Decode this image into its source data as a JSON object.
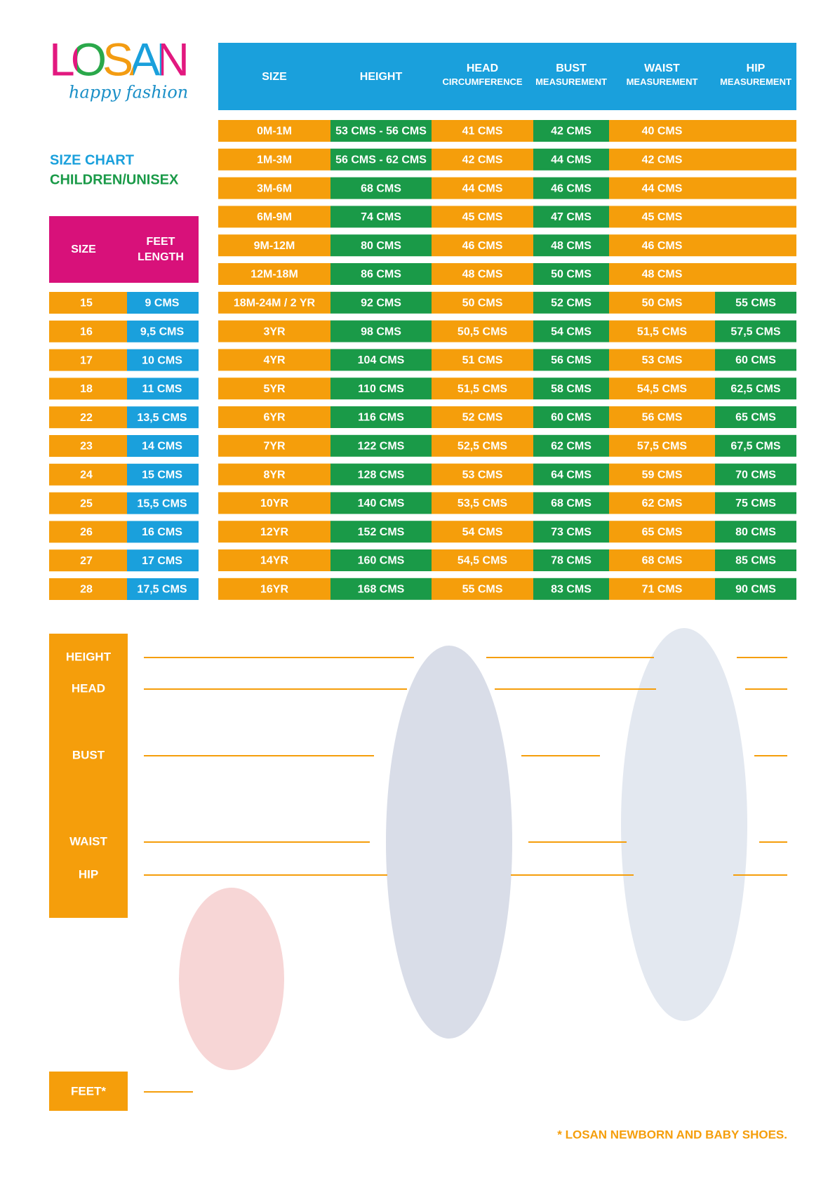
{
  "logo": {
    "brand": "LOSAN",
    "tagline": "happy fashion"
  },
  "title": {
    "line1": "SIZE CHART",
    "line2": "CHILDREN/UNISEX"
  },
  "feet_table": {
    "header": [
      "SIZE",
      "FEET LENGTH"
    ],
    "rows": [
      [
        "15",
        "9 CMS"
      ],
      [
        "16",
        "9,5 CMS"
      ],
      [
        "17",
        "10 CMS"
      ],
      [
        "18",
        "11 CMS"
      ],
      [
        "22",
        "13,5 CMS"
      ],
      [
        "23",
        "14 CMS"
      ],
      [
        "24",
        "15 CMS"
      ],
      [
        "25",
        "15,5 CMS"
      ],
      [
        "26",
        "16 CMS"
      ],
      [
        "27",
        "17 CMS"
      ],
      [
        "28",
        "17,5 CMS"
      ]
    ]
  },
  "size_table": {
    "header": [
      "SIZE",
      "HEIGHT",
      "HEAD CIRCUMFERENCE",
      "BUST MEASUREMENT",
      "WAIST MEASUREMENT",
      "HIP MEASUREMENT"
    ],
    "rows": [
      [
        "0M-1M",
        "53 CMS - 56 CMS",
        "41 CMS",
        "42 CMS",
        "40 CMS",
        null
      ],
      [
        "1M-3M",
        "56 CMS - 62 CMS",
        "42 CMS",
        "44 CMS",
        "42 CMS",
        null
      ],
      [
        "3M-6M",
        "68 CMS",
        "44 CMS",
        "46 CMS",
        "44 CMS",
        null
      ],
      [
        "6M-9M",
        "74 CMS",
        "45 CMS",
        "47 CMS",
        "45 CMS",
        null
      ],
      [
        "9M-12M",
        "80 CMS",
        "46 CMS",
        "48 CMS",
        "46 CMS",
        null
      ],
      [
        "12M-18M",
        "86 CMS",
        "48 CMS",
        "50 CMS",
        "48 CMS",
        null
      ],
      [
        "18M-24M / 2 YR",
        "92 CMS",
        "50 CMS",
        "52 CMS",
        "50 CMS",
        "55 CMS"
      ],
      [
        "3YR",
        "98 CMS",
        "50,5 CMS",
        "54 CMS",
        "51,5 CMS",
        "57,5 CMS"
      ],
      [
        "4YR",
        "104 CMS",
        "51 CMS",
        "56 CMS",
        "53 CMS",
        "60 CMS"
      ],
      [
        "5YR",
        "110 CMS",
        "51,5 CMS",
        "58 CMS",
        "54,5 CMS",
        "62,5 CMS"
      ],
      [
        "6YR",
        "116 CMS",
        "52 CMS",
        "60 CMS",
        "56 CMS",
        "65 CMS"
      ],
      [
        "7YR",
        "122 CMS",
        "52,5 CMS",
        "62 CMS",
        "57,5 CMS",
        "67,5 CMS"
      ],
      [
        "8YR",
        "128 CMS",
        "53 CMS",
        "64 CMS",
        "59 CMS",
        "70 CMS"
      ],
      [
        "10YR",
        "140 CMS",
        "53,5 CMS",
        "68 CMS",
        "62 CMS",
        "75 CMS"
      ],
      [
        "12YR",
        "152 CMS",
        "54 CMS",
        "73 CMS",
        "65 CMS",
        "80 CMS"
      ],
      [
        "14YR",
        "160 CMS",
        "54,5 CMS",
        "78 CMS",
        "68 CMS",
        "85 CMS"
      ],
      [
        "16YR",
        "168 CMS",
        "55 CMS",
        "83 CMS",
        "71 CMS",
        "90 CMS"
      ]
    ]
  },
  "body_labels": [
    "HEIGHT",
    "HEAD",
    "BUST",
    "WAIST",
    "HIP"
  ],
  "feet_label": "FEET*",
  "footnote": "* LOSAN NEWBORN AND BABY SHOES."
}
